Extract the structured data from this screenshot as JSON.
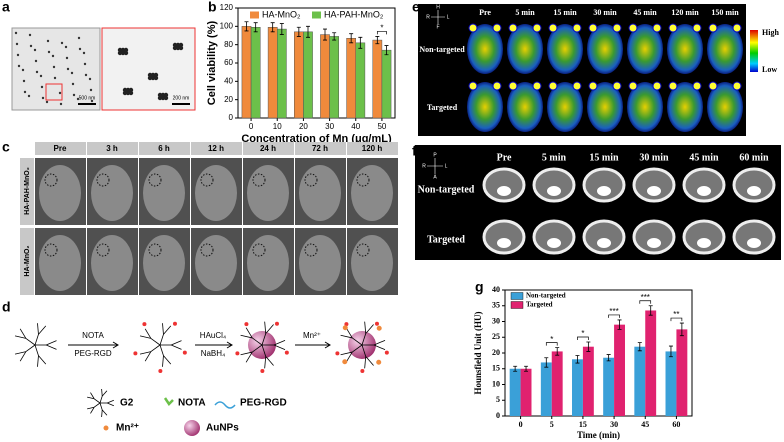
{
  "chart_data": [
    {
      "type": "bar",
      "panel_label": "b",
      "x_label": "Concentration of Mn (μg/mL)",
      "y_label": "Cell viability (%)",
      "categories": [
        "0",
        "10",
        "20",
        "30",
        "40",
        "50"
      ],
      "series": [
        {
          "name": "HA-MnO₂",
          "color": "#f08a3c",
          "values": [
            100,
            99,
            94,
            91,
            87,
            85
          ],
          "errors": [
            5,
            5,
            5,
            6,
            5,
            4
          ]
        },
        {
          "name": "HA-PAH-MnO₂",
          "color": "#6cc04a",
          "values": [
            99,
            97,
            94,
            89,
            82,
            74
          ],
          "errors": [
            5,
            6,
            6,
            4,
            6,
            5
          ]
        }
      ],
      "ylim": [
        0,
        120
      ],
      "yticks": [
        0,
        20,
        40,
        60,
        80,
        100,
        120
      ],
      "grid": false,
      "legend": "top",
      "annotations": [
        "*"
      ]
    },
    {
      "type": "bar",
      "panel_label": "g",
      "x_label": "Time (min)",
      "y_label": "Hounsfield Unit (HU)",
      "categories": [
        "0",
        "5",
        "15",
        "30",
        "45",
        "60"
      ],
      "series": [
        {
          "name": "Non-targeted",
          "color": "#3aa0d8",
          "values": [
            15,
            17,
            18,
            18.5,
            22,
            20.5
          ],
          "errors": [
            0.8,
            1.5,
            1.2,
            1,
            1.3,
            1.7
          ]
        },
        {
          "name": "Targeted",
          "color": "#e0226f",
          "values": [
            15,
            20.5,
            22,
            29,
            33.5,
            27.5
          ],
          "errors": [
            0.8,
            1.2,
            1.5,
            1.5,
            1.5,
            2
          ]
        }
      ],
      "ylim": [
        0,
        40
      ],
      "yticks": [
        0,
        5,
        10,
        15,
        20,
        25,
        30,
        35,
        40
      ],
      "grid": false,
      "legend": "top-left",
      "annotations": [
        "*",
        "*",
        "***",
        "***",
        "**"
      ]
    }
  ],
  "panel_a": {
    "label": "a",
    "scale_bars": [
      "500 nm",
      "200 nm"
    ]
  },
  "panel_c": {
    "label": "c",
    "columns": [
      "Pre",
      "3 h",
      "6 h",
      "12 h",
      "24 h",
      "72 h",
      "120 h"
    ],
    "rows": [
      "HA-PAH-MnO₂",
      "HA-MnO₂"
    ]
  },
  "panel_d": {
    "label": "d",
    "steps": [
      "NOTA",
      "PEG-RGD",
      "HAuCl₄",
      "NaBH₄",
      "Mn²⁺"
    ],
    "legend": [
      "G2",
      "NOTA",
      "PEG-RGD",
      "Mn²⁺",
      "AuNPs"
    ]
  },
  "panel_e": {
    "label": "e",
    "columns": [
      "Pre",
      "5 min",
      "15 min",
      "30 min",
      "45 min",
      "120 min",
      "150 min"
    ],
    "rows": [
      "Non-targeted",
      "Targeted"
    ],
    "colorbar": [
      "High",
      "Low"
    ],
    "orientation": [
      "H",
      "R",
      "L",
      "F"
    ]
  },
  "panel_f": {
    "label": "f",
    "columns": [
      "Pre",
      "5 min",
      "15 min",
      "30 min",
      "45 min",
      "60 min"
    ],
    "rows": [
      "Non-targeted",
      "Targeted"
    ],
    "orientation": [
      "P",
      "R",
      "L",
      "A"
    ]
  }
}
